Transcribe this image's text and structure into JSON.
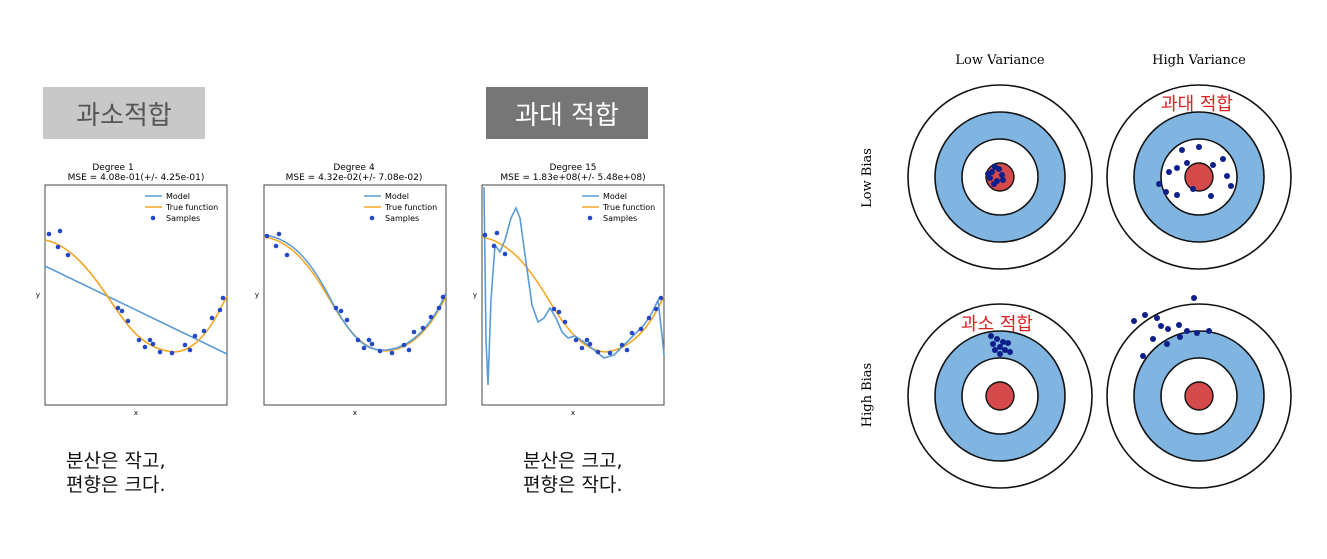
{
  "tags": {
    "underfit": "과소적합",
    "overfit": "과대 적합"
  },
  "captions": {
    "left": [
      "분산은 작고,",
      "편향은 크다."
    ],
    "right": [
      "분산은 크고,",
      "편향은 작다."
    ]
  },
  "plots": [
    {
      "title": "Degree 1",
      "mse": "MSE = 4.08e-01(+/- 4.25e-01)"
    },
    {
      "title": "Degree 4",
      "mse": "MSE = 4.32e-02(+/- 7.08e-02)"
    },
    {
      "title": "Degree 15",
      "mse": "MSE = 1.83e+08(+/- 5.48e+08)"
    }
  ],
  "legend": {
    "model": "Model",
    "true_function": "True function",
    "samples": "Samples"
  },
  "axes": {
    "xlabel": "x",
    "ylabel": "y"
  },
  "targets": {
    "col_low": "Low Variance",
    "col_high": "High Variance",
    "row_low": "Low Bias",
    "row_high": "High Bias",
    "overfit_label": "과대 적합",
    "underfit_label": "과소 적합"
  },
  "colors": {
    "model_line": "#5b9bd5",
    "true_line": "#f5a623",
    "sample_dot": "#2348c8",
    "target_ring": "#7fb5e0",
    "target_center": "#d44a4a",
    "target_dot": "#0d1f8a",
    "annotation": "#e02020"
  }
}
